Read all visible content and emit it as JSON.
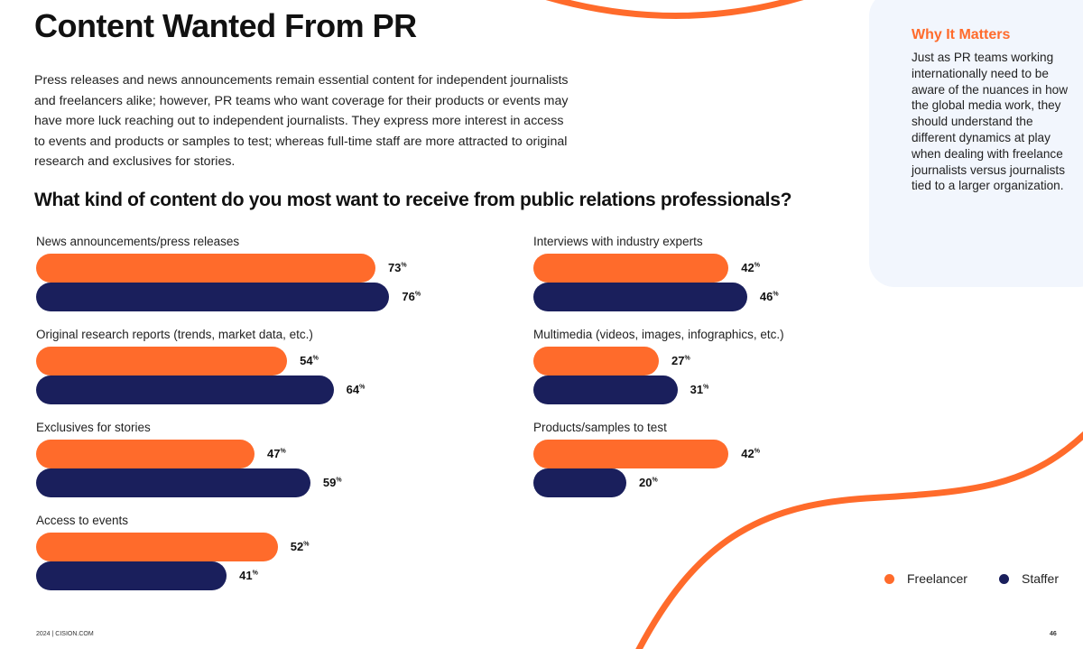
{
  "title": "Content Wanted From PR",
  "intro": "Press releases and news announcements remain essential content for independent journalists and freelancers alike; however, PR teams who want coverage for their products or events may have more luck reaching out to independent journalists. They express more interest in access to events and products or samples to test; whereas full-time staff are more attracted to original research and exclusives for stories.",
  "sidebar": {
    "heading": "Why It Matters",
    "body": "Just as PR teams working internationally need to be aware of the nuances in how the global media work, they should understand the different dynamics at play when dealing with freelance journalists versus journalists tied to a larger organization."
  },
  "footer": {
    "left": "2024  |  CISION.COM",
    "page": "46"
  },
  "colors": {
    "freelancer": "#ff6b2b",
    "staffer": "#1a1f5c",
    "accent": "#ff6b2b",
    "sidebar_bg": "#f2f6fd"
  },
  "chart_data": {
    "type": "bar",
    "orientation": "horizontal",
    "title": "What kind of content do you most want to receive from public relations professionals?",
    "unit": "%",
    "categories": [
      "News announcements/press releases",
      "Original research reports (trends, market data, etc.)",
      "Exclusives for stories",
      "Access to events",
      "Interviews with industry experts",
      "Multimedia (videos, images, infographics, etc.)",
      "Products/samples to test"
    ],
    "series": [
      {
        "name": "Freelancer",
        "color": "#ff6b2b",
        "values": [
          73,
          54,
          47,
          52,
          42,
          27,
          42
        ]
      },
      {
        "name": "Staffer",
        "color": "#1a1f5c",
        "values": [
          76,
          64,
          59,
          41,
          46,
          31,
          20
        ]
      }
    ],
    "legend_position": "bottom-right",
    "grid": false
  }
}
